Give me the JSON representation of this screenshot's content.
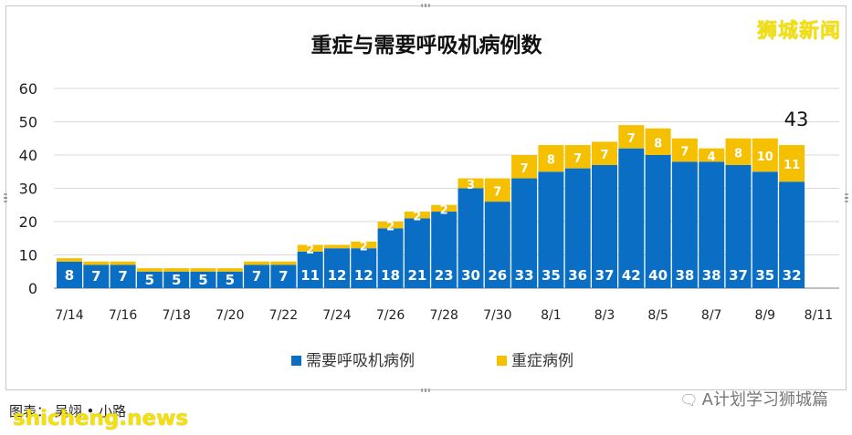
{
  "chart_data": {
    "type": "bar",
    "stacked": true,
    "title": "重症与需要呼吸机病例数",
    "categories": [
      "7/14",
      "7/15",
      "7/16",
      "7/17",
      "7/18",
      "7/19",
      "7/20",
      "7/21",
      "7/22",
      "7/23",
      "7/24",
      "7/25",
      "7/26",
      "7/27",
      "7/28",
      "7/29",
      "7/30",
      "7/31",
      "8/1",
      "8/2",
      "8/3",
      "8/4",
      "8/5",
      "8/6",
      "8/7",
      "8/8",
      "8/9",
      "8/10"
    ],
    "x_tick_labels": [
      "7/14",
      "7/16",
      "7/18",
      "7/20",
      "7/22",
      "7/24",
      "7/26",
      "7/28",
      "7/30",
      "8/1",
      "8/3",
      "8/5",
      "8/7",
      "8/9",
      "8/11"
    ],
    "series": [
      {
        "name": "需要呼吸机病例",
        "color": "#0a6fc4",
        "values": [
          8,
          7,
          7,
          5,
          5,
          5,
          5,
          7,
          7,
          11,
          12,
          12,
          18,
          21,
          23,
          30,
          26,
          33,
          35,
          36,
          37,
          42,
          40,
          38,
          38,
          37,
          35,
          32
        ]
      },
      {
        "name": "重症病例",
        "color": "#f5c000",
        "values": [
          1,
          1,
          1,
          1,
          1,
          1,
          1,
          1,
          1,
          2,
          1,
          2,
          2,
          2,
          2,
          3,
          7,
          7,
          8,
          7,
          7,
          7,
          8,
          7,
          4,
          8,
          10,
          11
        ]
      }
    ],
    "series_labels_visible": [
      [
        true,
        true,
        true,
        true,
        true,
        true,
        true,
        true,
        true,
        true,
        true,
        true,
        true,
        true,
        true,
        true,
        true,
        true,
        true,
        true,
        true,
        true,
        true,
        true,
        true,
        true,
        true,
        true
      ],
      [
        false,
        false,
        false,
        false,
        false,
        false,
        false,
        false,
        false,
        true,
        false,
        true,
        true,
        true,
        true,
        true,
        true,
        true,
        true,
        true,
        true,
        true,
        true,
        true,
        true,
        true,
        true,
        true
      ]
    ],
    "ylim": [
      0,
      60
    ],
    "yticks": [
      0,
      10,
      20,
      30,
      40,
      50,
      60
    ],
    "grid": true,
    "legend_position": "bottom",
    "annotation": "43",
    "xlabel": "",
    "ylabel": ""
  },
  "branding": {
    "top_right": "狮城新闻",
    "caption": "图表： 吴翊 • 小路",
    "watermark_bottom_left": "shicheng.news",
    "watermark_bottom_right": "A计划学习狮城篇"
  },
  "colors": {
    "grid": "#d9d9d9",
    "axis": "#7f7f7f"
  }
}
